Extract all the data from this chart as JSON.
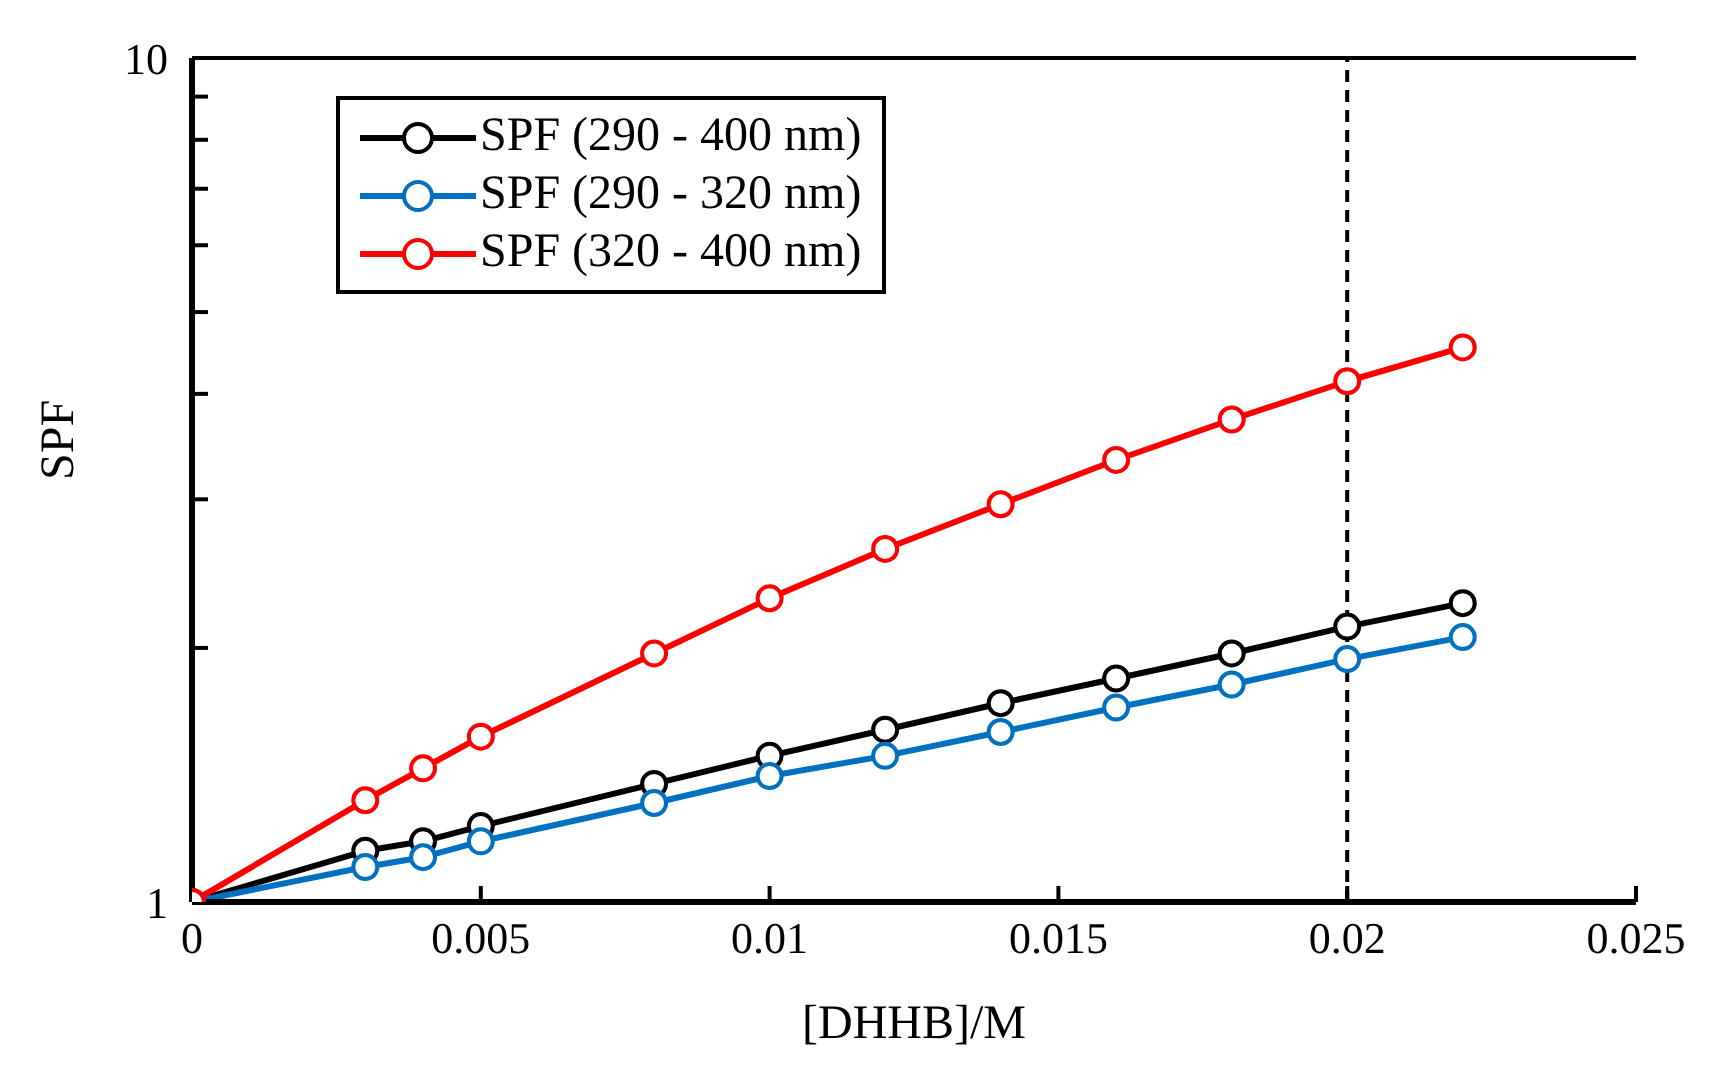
{
  "chart_data": {
    "type": "line",
    "xlabel": "[DHHB]/M",
    "ylabel": "SPF",
    "x": [
      0,
      0.003,
      0.004,
      0.005,
      0.008,
      0.01,
      0.012,
      0.014,
      0.016,
      0.018,
      0.02,
      0.022
    ],
    "series": [
      {
        "name": "SPF (290 - 400 nm)",
        "color": "#000000",
        "values": [
          1,
          1.15,
          1.18,
          1.23,
          1.38,
          1.49,
          1.6,
          1.72,
          1.84,
          1.97,
          2.12,
          2.26
        ]
      },
      {
        "name": "SPF (290 - 320 nm)",
        "color": "#0070c0",
        "values": [
          1,
          1.1,
          1.13,
          1.18,
          1.31,
          1.41,
          1.49,
          1.59,
          1.7,
          1.81,
          1.94,
          2.06
        ]
      },
      {
        "name": "SPF (320 - 400 nm)",
        "color": "#ff0000",
        "values": [
          1,
          1.32,
          1.44,
          1.57,
          1.97,
          2.29,
          2.62,
          2.96,
          3.34,
          3.73,
          4.14,
          4.54
        ]
      }
    ],
    "xlim": [
      0,
      0.025
    ],
    "xticks": [
      0,
      0.005,
      0.01,
      0.015,
      0.02,
      0.025
    ],
    "ylim": [
      1,
      10
    ],
    "yticks": [
      1,
      {
        "value": 2,
        "label": null
      },
      {
        "value": 3,
        "label": null
      },
      {
        "value": 4,
        "label": null
      },
      {
        "value": 5,
        "label": null
      },
      {
        "value": 6,
        "label": null
      },
      {
        "value": 7,
        "label": null
      },
      {
        "value": 8,
        "label": null
      },
      {
        "value": 9,
        "label": null
      },
      10
    ],
    "log": "y",
    "grid": false,
    "legend": "top left",
    "marker": "circle",
    "line_style": "solid",
    "ref_lines": [
      {
        "axis": "x",
        "value": 0.02,
        "color": "#000000",
        "line_style": "dashed"
      }
    ]
  }
}
